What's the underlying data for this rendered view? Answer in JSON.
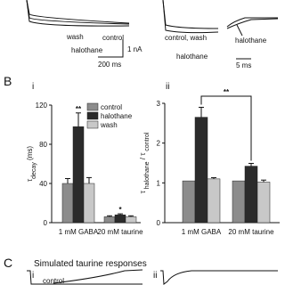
{
  "panel_a": {
    "left": {
      "labels": [
        "wash",
        "control",
        "halothane"
      ],
      "scale_current": "1 nA",
      "scale_time": "200 ms"
    },
    "right": {
      "labels": [
        "control, wash",
        "halothane",
        "halothane"
      ],
      "scale_time": "5 ms"
    }
  },
  "panel_b": {
    "label": "B",
    "sub_labels": [
      "i",
      "ii"
    ]
  },
  "chart_data": [
    {
      "type": "bar",
      "categories": [
        "1 mM GABA",
        "20 mM taurine"
      ],
      "ylabel_parts": [
        {
          "text": "τ"
        },
        {
          "text": "decay",
          "sub": true
        },
        {
          "text": " (ms)"
        }
      ],
      "series": [
        {
          "name": "control",
          "color": "#8c8c8c",
          "values": [
            40,
            6
          ],
          "errors": [
            5,
            1
          ]
        },
        {
          "name": "halothane",
          "color": "#2b2b2b",
          "values": [
            98,
            8
          ],
          "errors": [
            14,
            1
          ]
        },
        {
          "name": "wash",
          "color": "#c8c8c8",
          "values": [
            40,
            6
          ],
          "errors": [
            6,
            1
          ]
        }
      ],
      "ylim": [
        0,
        120
      ],
      "yticks": [
        0,
        40,
        80,
        120
      ],
      "annotations": [
        "**",
        "*"
      ],
      "legend": true
    },
    {
      "type": "bar",
      "categories": [
        "1 mM GABA",
        "20 mM taurine"
      ],
      "ylabel_parts": [
        {
          "text": "τ"
        },
        {
          "text": " halothane",
          "sub": true
        },
        {
          "text": " / τ"
        },
        {
          "text": " control",
          "sub": true
        }
      ],
      "series": [
        {
          "color": "#8c8c8c",
          "values": [
            1.05,
            1.05
          ],
          "errors": [
            0,
            0
          ]
        },
        {
          "color": "#2b2b2b",
          "values": [
            2.65,
            1.42
          ],
          "errors": [
            0.25,
            0.07
          ]
        },
        {
          "color": "#c8c8c8",
          "values": [
            1.1,
            1.02
          ],
          "errors": [
            0.03,
            0.05
          ]
        }
      ],
      "ylim": [
        0,
        3
      ],
      "yticks": [
        0,
        1,
        2,
        3
      ],
      "bracket_annotation": "**",
      "legend": false
    }
  ],
  "panel_c": {
    "label": "C",
    "title": "Simulated taurine responses",
    "sub_labels": [
      "i",
      "ii"
    ],
    "trace_label": "control"
  }
}
